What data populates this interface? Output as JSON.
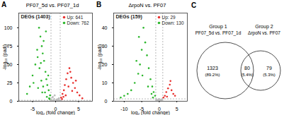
{
  "chart_data": [
    {
      "type": "scatter",
      "panel": "A",
      "title": "PF07_5d vs. PF07_1d",
      "subtitle": "DEGs (1403)",
      "x_label": "log₂ (fold change)",
      "y_label": "-log₁₀ (padj)",
      "xlim": [
        -8,
        8
      ],
      "xticks": [
        -5,
        0,
        5
      ],
      "ylim": [
        0,
        120
      ],
      "yticks": [
        0,
        25,
        50,
        75,
        100
      ],
      "x_cutoffs": [
        -1,
        1
      ],
      "y_cutoff": 1.3,
      "legend": "top-right",
      "series": [
        {
          "color": "#bdbdbd",
          "x": [
            -0.9,
            -0.7,
            -0.5,
            -0.3,
            -0.1,
            0.1,
            0.3,
            0.5,
            0.7,
            0.9,
            -0.8,
            -0.4,
            0,
            0.4,
            0.8,
            -0.6,
            0.6,
            -0.2,
            0.2,
            1.1
          ],
          "values": [
            2,
            5,
            1,
            3,
            0.5,
            0.8,
            2.5,
            1.2,
            4,
            1.5,
            0.3,
            1,
            0.2,
            0.6,
            0.4,
            6,
            3,
            8,
            2,
            0.8
          ]
        },
        {
          "name": "Up: 641",
          "color": "#e8312f",
          "x": [
            1.2,
            1.5,
            1.8,
            2.0,
            2.3,
            2.6,
            3.0,
            3.4,
            3.8,
            4.2,
            4.7,
            5.2,
            5.8,
            1.4,
            2.2,
            2.8,
            3.6,
            4.4,
            1.7,
            3.2
          ],
          "values": [
            5,
            10,
            15,
            22,
            30,
            38,
            45,
            32,
            25,
            18,
            12,
            8,
            4,
            3,
            8,
            20,
            14,
            28,
            6,
            40
          ]
        },
        {
          "name": "Down: 762",
          "color": "#2eb82e",
          "x": [
            -1.2,
            -1.5,
            -1.8,
            -2.0,
            -2.2,
            -2.5,
            -2.8,
            -3.0,
            -3.3,
            -3.6,
            -4.0,
            -4.4,
            -5.0,
            -5.6,
            -6.2,
            -1.4,
            -1.9,
            -2.3,
            -2.7,
            -3.1,
            -3.5,
            -3.9,
            -2.1,
            -2.6,
            -3.2,
            -1.6,
            -4.8,
            -2.9,
            -3.8,
            -1.3
          ],
          "values": [
            8,
            15,
            22,
            30,
            40,
            55,
            65,
            75,
            88,
            100,
            70,
            50,
            35,
            20,
            10,
            4,
            6,
            12,
            20,
            28,
            45,
            60,
            95,
            82,
            52,
            35,
            25,
            12,
            18,
            3
          ]
        }
      ]
    },
    {
      "type": "scatter",
      "panel": "B",
      "title": "ΔrpoN vs. PF07",
      "subtitle": "DEGs (159)",
      "x_label": "log₂ (fold change)",
      "y_label": "-log₁₀ (padj)",
      "xlim": [
        -13,
        8
      ],
      "xticks": [
        -10,
        -5,
        0,
        5
      ],
      "ylim": [
        0,
        48
      ],
      "yticks": [
        0,
        10,
        20,
        30,
        40
      ],
      "x_cutoffs": [
        -1,
        1
      ],
      "y_cutoff": 1.3,
      "legend": "top-right",
      "series": [
        {
          "color": "#bdbdbd",
          "x": [
            -0.9,
            -0.6,
            -0.3,
            0,
            0.3,
            0.6,
            0.9,
            -0.5,
            0.5,
            -0.8,
            0.2,
            -0.1
          ],
          "values": [
            1,
            0.5,
            0.8,
            0.3,
            0.6,
            0.4,
            1.1,
            0.2,
            0.9,
            0.7,
            0.1,
            1.2
          ]
        },
        {
          "name": "Up: 29",
          "color": "#e8312f",
          "x": [
            1.2,
            1.6,
            2.0,
            2.5,
            3.0,
            3.5,
            4.0,
            4.5,
            2.2,
            3.2
          ],
          "values": [
            2,
            3,
            5,
            7,
            9,
            6,
            4,
            3,
            2.5,
            11
          ]
        },
        {
          "name": "Down: 130",
          "color": "#2eb82e",
          "x": [
            -1.2,
            -1.6,
            -2.0,
            -2.5,
            -3.0,
            -3.5,
            -4.0,
            -4.5,
            -5.0,
            -5.5,
            -6.0,
            -7.0,
            -8.0,
            -9.0,
            -10.0,
            -11.0,
            -3.2,
            -4.8,
            -6.5,
            -2.2,
            -5.8,
            -1.8
          ],
          "values": [
            3,
            5,
            8,
            12,
            18,
            25,
            32,
            40,
            28,
            20,
            15,
            10,
            6,
            4,
            3,
            2,
            8,
            14,
            22,
            4,
            35,
            2
          ]
        }
      ]
    }
  ],
  "venn": {
    "panel": "C",
    "sets": [
      {
        "name": "Group 1",
        "label": "PF07_5d vs. PF07_1d"
      },
      {
        "name": "Group 2",
        "label": "ΔrpoN vs. PF07"
      }
    ],
    "regions": [
      {
        "count": 1323,
        "percent": "(89.2%)"
      },
      {
        "count": 80,
        "percent": "(5.4%)"
      },
      {
        "count": 79,
        "percent": "(5.3%)"
      }
    ]
  }
}
